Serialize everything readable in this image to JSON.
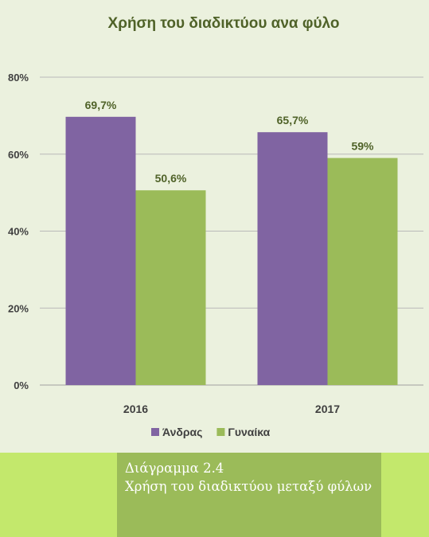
{
  "chart_data": {
    "type": "bar",
    "title": "Χρήση του διαδικτύου ανα φύλο",
    "categories": [
      "2016",
      "2017"
    ],
    "series": [
      {
        "name": "Άνδρας",
        "values": [
          69.7,
          65.7
        ],
        "labels": [
          "69,7%",
          "65,7%"
        ],
        "color": "#8064a2"
      },
      {
        "name": "Γυναίκα",
        "values": [
          50.6,
          59
        ],
        "labels": [
          "50,6%",
          "59%"
        ],
        "color": "#9bbb59"
      }
    ],
    "ylim": [
      0,
      80
    ],
    "yticks": [
      0,
      20,
      40,
      60,
      80
    ],
    "ytick_labels": [
      "0%",
      "20%",
      "40%",
      "60%",
      "80%"
    ],
    "grid": true,
    "legend_position": "bottom"
  },
  "caption": {
    "line1": "Διάγραμμα 2.4",
    "line2": "Χρήση του διαδικτύου μεταξύ φύλων"
  },
  "colors": {
    "chart_background": "#ebf1de",
    "caption_band": "#c3e86c",
    "caption_box": "#9bbb59",
    "title_text": "#4f6228"
  }
}
